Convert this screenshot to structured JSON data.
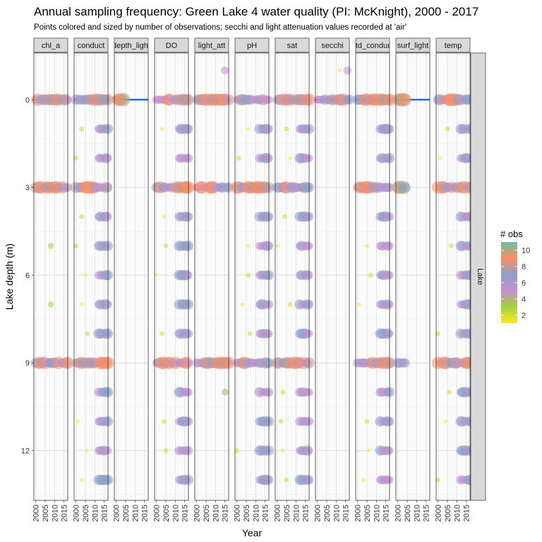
{
  "chart_data": {
    "type": "scatter",
    "title": "Annual sampling frequency: Green Lake 4 water quality (PI: McKnight), 2000 - 2017",
    "subtitle": "Points colored and sized by number of observations; secchi and light attenuation values recorded at 'air'",
    "xlabel": "Year",
    "ylabel": "Lake depth (m)",
    "xlim": [
      1999,
      2017
    ],
    "ylim": [
      13.7,
      -1.6
    ],
    "y_reversed": true,
    "x_ticks": [
      "2000",
      "2005",
      "2010",
      "2015"
    ],
    "y_ticks": [
      "0",
      "3",
      "6",
      "9",
      "12"
    ],
    "row_strip": "Lake",
    "grid": true,
    "legend": {
      "title": "# obs",
      "position": "right",
      "ticks": [
        "10",
        "8",
        "6",
        "4",
        "2"
      ],
      "range": [
        1,
        11
      ],
      "colors": [
        "#FDE725",
        "#9ED43C",
        "#C98FD0",
        "#8DA0CB",
        "#FC8D62",
        "#66C2A5"
      ]
    },
    "ref_line_color": "#1f6fd6",
    "panels": [
      {
        "name": "chl_a"
      },
      {
        "name": "conduct"
      },
      {
        "name": "depth_light"
      },
      {
        "name": "DO"
      },
      {
        "name": "light_att"
      },
      {
        "name": "pH"
      },
      {
        "name": "sat"
      },
      {
        "name": "secchi"
      },
      {
        "name": "std_conduct"
      },
      {
        "name": "surf_light"
      },
      {
        "name": "temp"
      }
    ]
  }
}
